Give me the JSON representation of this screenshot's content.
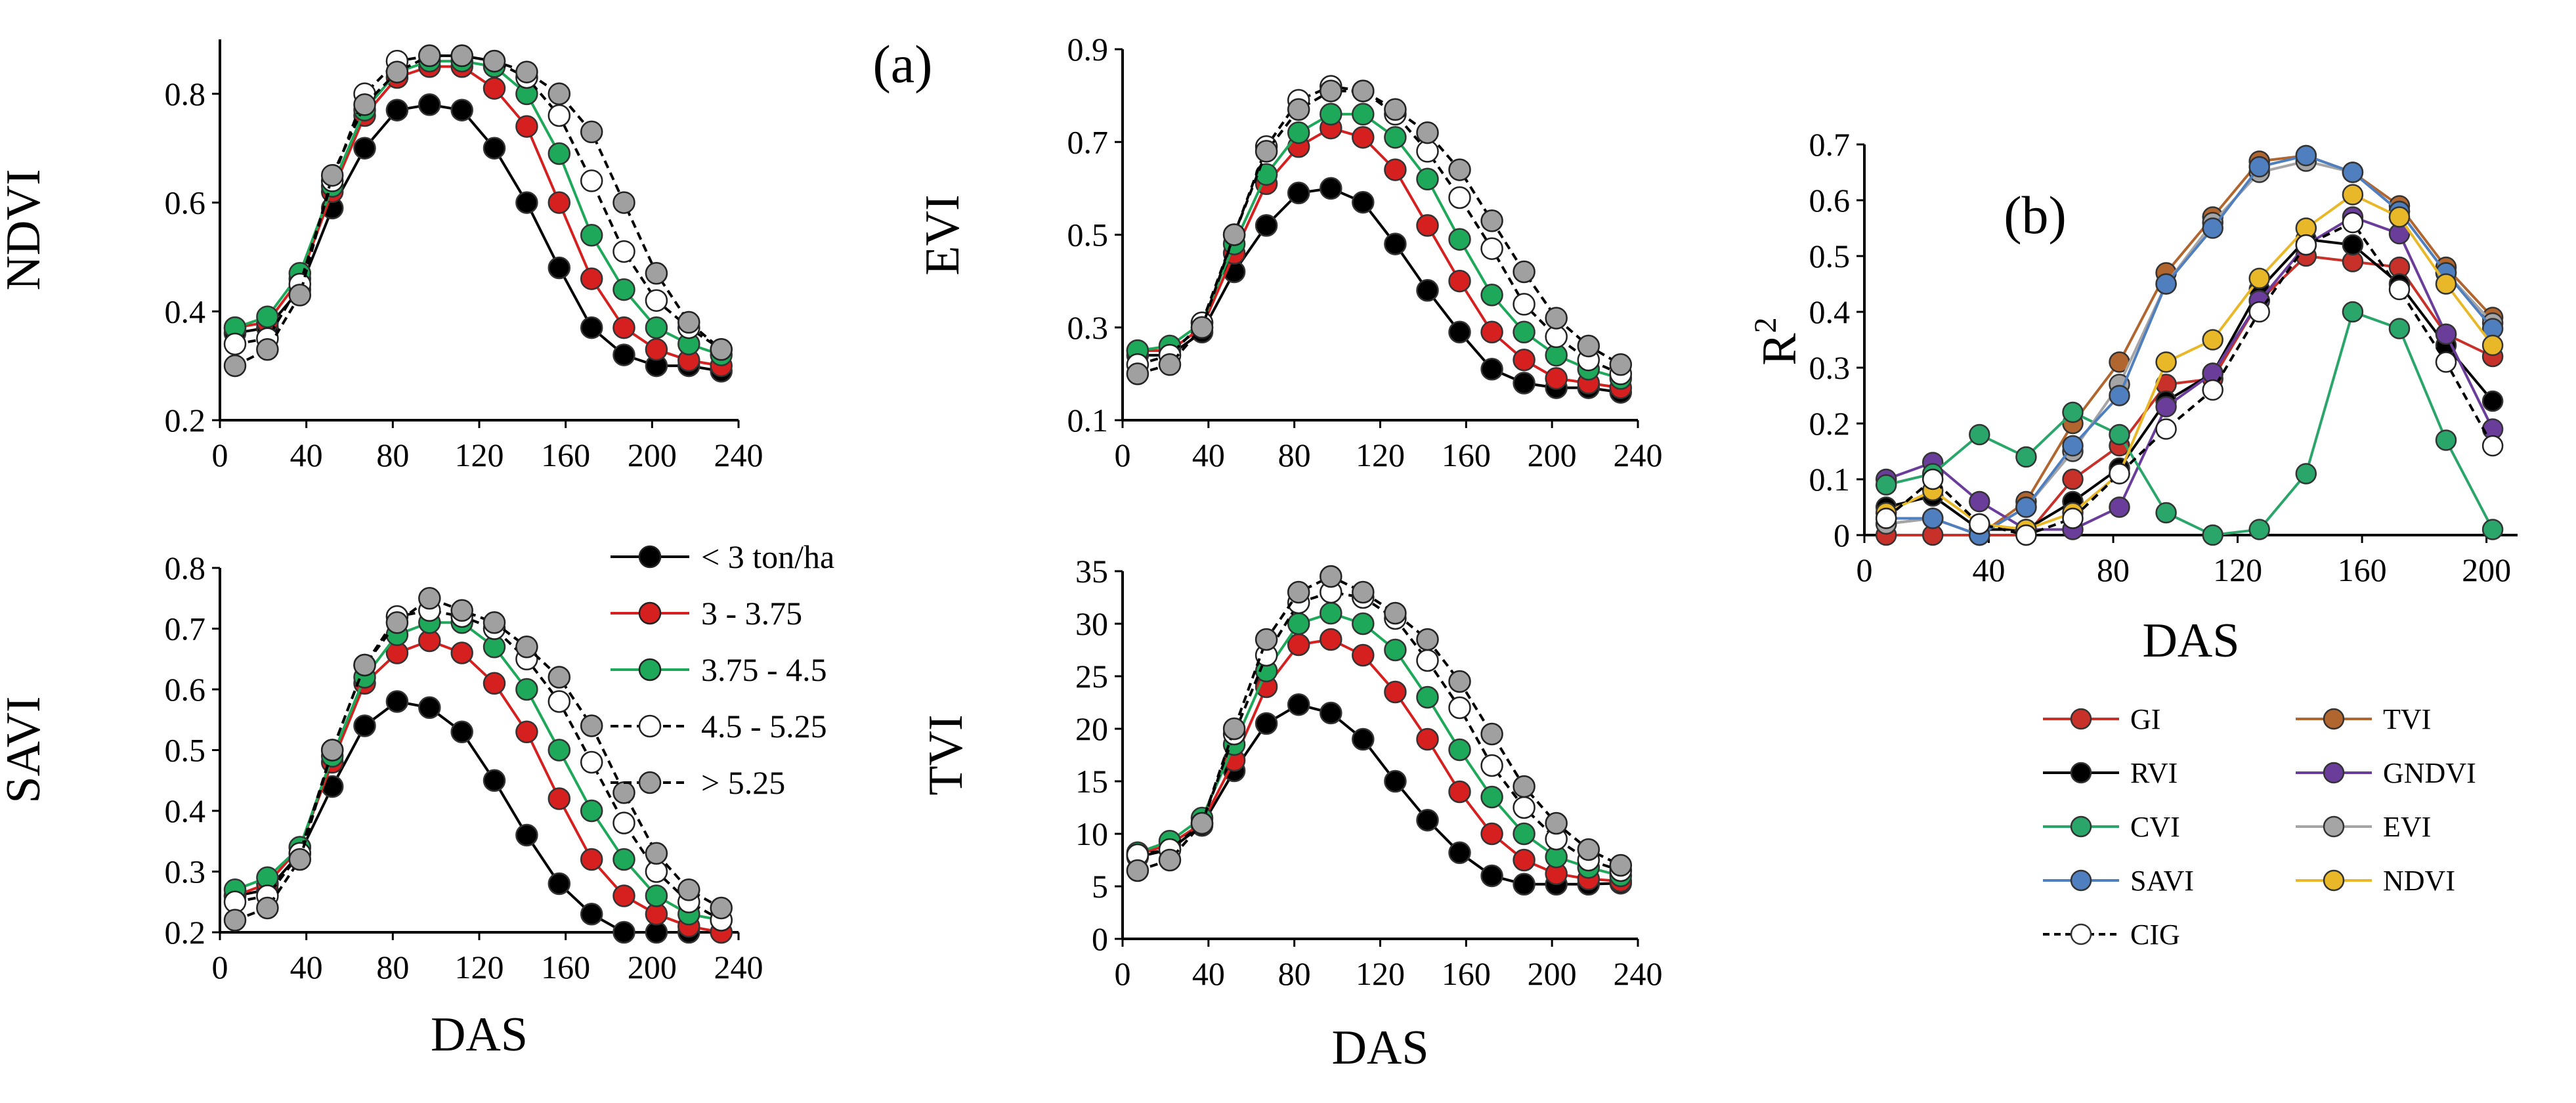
{
  "panel_labels": {
    "a": "(a)",
    "b": "(b)"
  },
  "colors": {
    "lt3": "#000000",
    "r3_375": "#d62020",
    "r375_45": "#1ea85a",
    "r45_525": "#ffffff",
    "gt525": "#a0a0a0",
    "GI": "#c8312a",
    "TVI": "#b0662e",
    "RVI": "#000000",
    "GNDVI": "#6a3d9a",
    "CVI": "#2aa66a",
    "EVI": "#a5a5a5",
    "SAVI": "#4f7fbf",
    "NDVI": "#e8b828",
    "CIG": "#ffffff"
  },
  "chart_data": [
    {
      "id": "ndvi",
      "type": "line",
      "ylabel": "NDVI",
      "xlabel": "",
      "xlim": [
        0,
        240
      ],
      "ylim": [
        0.2,
        0.9
      ],
      "xticks": [
        "0",
        "40",
        "80",
        "120",
        "160",
        "200",
        "240"
      ],
      "yticks": [
        "0.2",
        "0.4",
        "0.6",
        "0.8"
      ],
      "x": [
        7,
        22,
        37,
        52,
        67,
        82,
        97,
        112,
        127,
        142,
        157,
        172,
        187,
        202,
        217,
        232
      ],
      "series": [
        {
          "name": "< 3 ton/ha",
          "values": [
            0.36,
            0.37,
            0.44,
            0.59,
            0.7,
            0.77,
            0.78,
            0.77,
            0.7,
            0.6,
            0.48,
            0.37,
            0.32,
            0.3,
            0.3,
            0.29
          ]
        },
        {
          "name": "3 - 3.75",
          "values": [
            0.37,
            0.38,
            0.46,
            0.62,
            0.76,
            0.83,
            0.85,
            0.85,
            0.81,
            0.74,
            0.6,
            0.46,
            0.37,
            0.33,
            0.31,
            0.3
          ]
        },
        {
          "name": "3.75 - 4.5",
          "values": [
            0.37,
            0.39,
            0.47,
            0.63,
            0.77,
            0.84,
            0.86,
            0.86,
            0.85,
            0.8,
            0.69,
            0.54,
            0.44,
            0.37,
            0.34,
            0.32
          ]
        },
        {
          "name": "4.5 - 5.25",
          "values": [
            0.34,
            0.35,
            0.45,
            0.64,
            0.8,
            0.86,
            0.87,
            0.87,
            0.86,
            0.83,
            0.76,
            0.64,
            0.51,
            0.42,
            0.37,
            0.33
          ]
        },
        {
          "name": "> 5.25",
          "values": [
            0.3,
            0.33,
            0.43,
            0.65,
            0.78,
            0.84,
            0.87,
            0.87,
            0.86,
            0.84,
            0.8,
            0.73,
            0.6,
            0.47,
            0.38,
            0.33
          ]
        }
      ]
    },
    {
      "id": "evi",
      "type": "line",
      "ylabel": "EVI",
      "xlabel": "",
      "xlim": [
        0,
        240
      ],
      "ylim": [
        0.1,
        0.9
      ],
      "xticks": [
        "0",
        "40",
        "80",
        "120",
        "160",
        "200",
        "240"
      ],
      "yticks": [
        "0.1",
        "0.3",
        "0.5",
        "0.7",
        "0.9"
      ],
      "x": [
        7,
        22,
        37,
        52,
        67,
        82,
        97,
        112,
        127,
        142,
        157,
        172,
        187,
        202,
        217,
        232
      ],
      "series": [
        {
          "name": "< 3 ton/ha",
          "values": [
            0.24,
            0.24,
            0.29,
            0.42,
            0.52,
            0.59,
            0.6,
            0.57,
            0.48,
            0.38,
            0.29,
            0.21,
            0.18,
            0.17,
            0.17,
            0.16
          ]
        },
        {
          "name": "3 - 3.75",
          "values": [
            0.25,
            0.25,
            0.3,
            0.46,
            0.61,
            0.69,
            0.73,
            0.71,
            0.64,
            0.52,
            0.4,
            0.29,
            0.23,
            0.19,
            0.18,
            0.17
          ]
        },
        {
          "name": "3.75 - 4.5",
          "values": [
            0.25,
            0.26,
            0.31,
            0.48,
            0.63,
            0.72,
            0.76,
            0.76,
            0.71,
            0.62,
            0.49,
            0.37,
            0.29,
            0.24,
            0.21,
            0.19
          ]
        },
        {
          "name": "4.5 - 5.25",
          "values": [
            0.22,
            0.24,
            0.31,
            0.5,
            0.69,
            0.79,
            0.82,
            0.81,
            0.76,
            0.68,
            0.58,
            0.47,
            0.35,
            0.28,
            0.23,
            0.2
          ]
        },
        {
          "name": "> 5.25",
          "values": [
            0.2,
            0.22,
            0.3,
            0.5,
            0.68,
            0.77,
            0.81,
            0.81,
            0.77,
            0.72,
            0.64,
            0.53,
            0.42,
            0.32,
            0.26,
            0.22
          ]
        }
      ]
    },
    {
      "id": "savi",
      "type": "line",
      "ylabel": "SAVI",
      "xlabel": "DAS",
      "xlim": [
        0,
        240
      ],
      "ylim": [
        0.2,
        0.8
      ],
      "xticks": [
        "0",
        "40",
        "80",
        "120",
        "160",
        "200",
        "240"
      ],
      "yticks": [
        "0.2",
        "0.3",
        "0.4",
        "0.5",
        "0.6",
        "0.7",
        "0.8"
      ],
      "x": [
        7,
        22,
        37,
        52,
        67,
        82,
        97,
        112,
        127,
        142,
        157,
        172,
        187,
        202,
        217,
        232
      ],
      "series": [
        {
          "name": "< 3 ton/ha",
          "values": [
            0.26,
            0.27,
            0.33,
            0.44,
            0.54,
            0.58,
            0.57,
            0.53,
            0.45,
            0.36,
            0.28,
            0.23,
            0.2,
            0.2,
            0.2,
            0.2
          ]
        },
        {
          "name": "3 - 3.75",
          "values": [
            0.26,
            0.28,
            0.34,
            0.48,
            0.61,
            0.66,
            0.68,
            0.66,
            0.61,
            0.53,
            0.42,
            0.32,
            0.26,
            0.23,
            0.21,
            0.2
          ]
        },
        {
          "name": "3.75 - 4.5",
          "values": [
            0.27,
            0.29,
            0.34,
            0.49,
            0.62,
            0.69,
            0.71,
            0.71,
            0.67,
            0.6,
            0.5,
            0.4,
            0.32,
            0.26,
            0.23,
            0.22
          ]
        },
        {
          "name": "4.5 - 5.25",
          "values": [
            0.25,
            0.26,
            0.33,
            0.5,
            0.64,
            0.72,
            0.73,
            0.72,
            0.7,
            0.65,
            0.58,
            0.48,
            0.38,
            0.3,
            0.25,
            0.22
          ]
        },
        {
          "name": "> 5.25",
          "values": [
            0.22,
            0.24,
            0.32,
            0.5,
            0.64,
            0.71,
            0.75,
            0.73,
            0.71,
            0.67,
            0.62,
            0.54,
            0.43,
            0.33,
            0.27,
            0.24
          ]
        }
      ]
    },
    {
      "id": "tvi",
      "type": "line",
      "ylabel": "TVI",
      "xlabel": "DAS",
      "xlim": [
        0,
        240
      ],
      "ylim": [
        0,
        35
      ],
      "xticks": [
        "0",
        "40",
        "80",
        "120",
        "160",
        "200",
        "240"
      ],
      "yticks": [
        "0",
        "5",
        "10",
        "15",
        "20",
        "25",
        "30",
        "35"
      ],
      "x": [
        7,
        22,
        37,
        52,
        67,
        82,
        97,
        112,
        127,
        142,
        157,
        172,
        187,
        202,
        217,
        232
      ],
      "series": [
        {
          "name": "< 3 ton/ha",
          "values": [
            7.8,
            8.5,
            10.8,
            16.0,
            20.5,
            22.3,
            21.5,
            19.0,
            15.0,
            11.3,
            8.2,
            6.0,
            5.2,
            5.2,
            5.2,
            5.3
          ]
        },
        {
          "name": "3 - 3.75",
          "values": [
            8.0,
            9.0,
            11.0,
            17.0,
            24.0,
            28.0,
            28.5,
            27.0,
            23.5,
            19.0,
            14.0,
            10.0,
            7.5,
            6.2,
            5.7,
            5.5
          ]
        },
        {
          "name": "3.75 - 4.5",
          "values": [
            8.2,
            9.3,
            11.5,
            18.5,
            25.5,
            30.0,
            31.0,
            30.0,
            27.5,
            23.0,
            18.0,
            13.5,
            10.0,
            7.8,
            6.8,
            6.0
          ]
        },
        {
          "name": "4.5 - 5.25",
          "values": [
            8.0,
            8.5,
            11.0,
            19.5,
            27.0,
            32.0,
            33.0,
            32.5,
            30.5,
            26.5,
            22.0,
            16.5,
            12.5,
            9.5,
            7.5,
            6.5
          ]
        },
        {
          "name": "> 5.25",
          "values": [
            6.5,
            7.5,
            11.0,
            20.0,
            28.5,
            33.0,
            34.5,
            33.0,
            31.0,
            28.5,
            24.5,
            19.5,
            14.5,
            11.0,
            8.5,
            7.0
          ]
        }
      ]
    },
    {
      "id": "r2",
      "type": "line",
      "ylabel": "R",
      "ylabel_sup": "2",
      "xlabel": "DAS",
      "xlim": [
        0,
        210
      ],
      "ylim": [
        0,
        0.7
      ],
      "xticks": [
        "0",
        "40",
        "80",
        "120",
        "160",
        "200"
      ],
      "yticks": [
        "0",
        "0.1",
        "0.2",
        "0.3",
        "0.4",
        "0.5",
        "0.6",
        "0.7"
      ],
      "x": [
        7,
        22,
        37,
        52,
        67,
        82,
        97,
        112,
        127,
        142,
        157,
        172,
        187,
        202
      ],
      "series": [
        {
          "name": "GI",
          "values": [
            0.0,
            0.0,
            0.0,
            0.0,
            0.1,
            0.16,
            0.27,
            0.28,
            0.42,
            0.5,
            0.49,
            0.48,
            0.36,
            0.32
          ]
        },
        {
          "name": "TVI",
          "values": [
            0.02,
            0.03,
            0.0,
            0.06,
            0.2,
            0.31,
            0.47,
            0.57,
            0.67,
            0.68,
            0.65,
            0.59,
            0.48,
            0.39
          ]
        },
        {
          "name": "RVI",
          "values": [
            0.05,
            0.07,
            0.01,
            0.01,
            0.06,
            0.12,
            0.24,
            0.29,
            0.44,
            0.53,
            0.52,
            0.45,
            0.34,
            0.24
          ]
        },
        {
          "name": "GNDVI",
          "values": [
            0.1,
            0.13,
            0.06,
            0.01,
            0.01,
            0.05,
            0.23,
            0.29,
            0.42,
            0.52,
            0.57,
            0.54,
            0.36,
            0.19
          ]
        },
        {
          "name": "CVI",
          "values": [
            0.09,
            0.11,
            0.18,
            0.14,
            0.22,
            0.18,
            0.04,
            0.0,
            0.01,
            0.11,
            0.4,
            0.37,
            0.17,
            0.01
          ]
        },
        {
          "name": "EVI",
          "values": [
            0.02,
            0.03,
            0.0,
            0.05,
            0.15,
            0.27,
            0.45,
            0.56,
            0.65,
            0.67,
            0.65,
            0.58,
            0.47,
            0.38
          ]
        },
        {
          "name": "SAVI",
          "values": [
            0.03,
            0.03,
            0.0,
            0.05,
            0.16,
            0.25,
            0.45,
            0.55,
            0.66,
            0.68,
            0.65,
            0.58,
            0.47,
            0.37
          ]
        },
        {
          "name": "NDVI",
          "values": [
            0.04,
            0.08,
            0.02,
            0.01,
            0.04,
            0.11,
            0.31,
            0.35,
            0.46,
            0.55,
            0.61,
            0.57,
            0.45,
            0.34
          ]
        },
        {
          "name": "CIG",
          "values": [
            0.03,
            0.1,
            0.02,
            0.0,
            0.03,
            0.11,
            0.19,
            0.26,
            0.4,
            0.52,
            0.56,
            0.44,
            0.31,
            0.16
          ]
        }
      ]
    }
  ],
  "legend_a": [
    {
      "label": "< 3 ton/ha",
      "key": "lt3",
      "dashed": false
    },
    {
      "label": "3 - 3.75",
      "key": "r3_375",
      "dashed": false
    },
    {
      "label": "3.75 - 4.5",
      "key": "r375_45",
      "dashed": false
    },
    {
      "label": "4.5 - 5.25",
      "key": "r45_525",
      "dashed": true
    },
    {
      "label": "> 5.25",
      "key": "gt525",
      "dashed": true
    }
  ],
  "legend_b": [
    {
      "label": "GI",
      "key": "GI",
      "dashed": false
    },
    {
      "label": "TVI",
      "key": "TVI",
      "dashed": false
    },
    {
      "label": "RVI",
      "key": "RVI",
      "dashed": false
    },
    {
      "label": "GNDVI",
      "key": "GNDVI",
      "dashed": false
    },
    {
      "label": "CVI",
      "key": "CVI",
      "dashed": false
    },
    {
      "label": "EVI",
      "key": "EVI",
      "dashed": false
    },
    {
      "label": "SAVI",
      "key": "SAVI",
      "dashed": false
    },
    {
      "label": "NDVI",
      "key": "NDVI",
      "dashed": false
    },
    {
      "label": "CIG",
      "key": "CIG",
      "dashed": true
    }
  ]
}
